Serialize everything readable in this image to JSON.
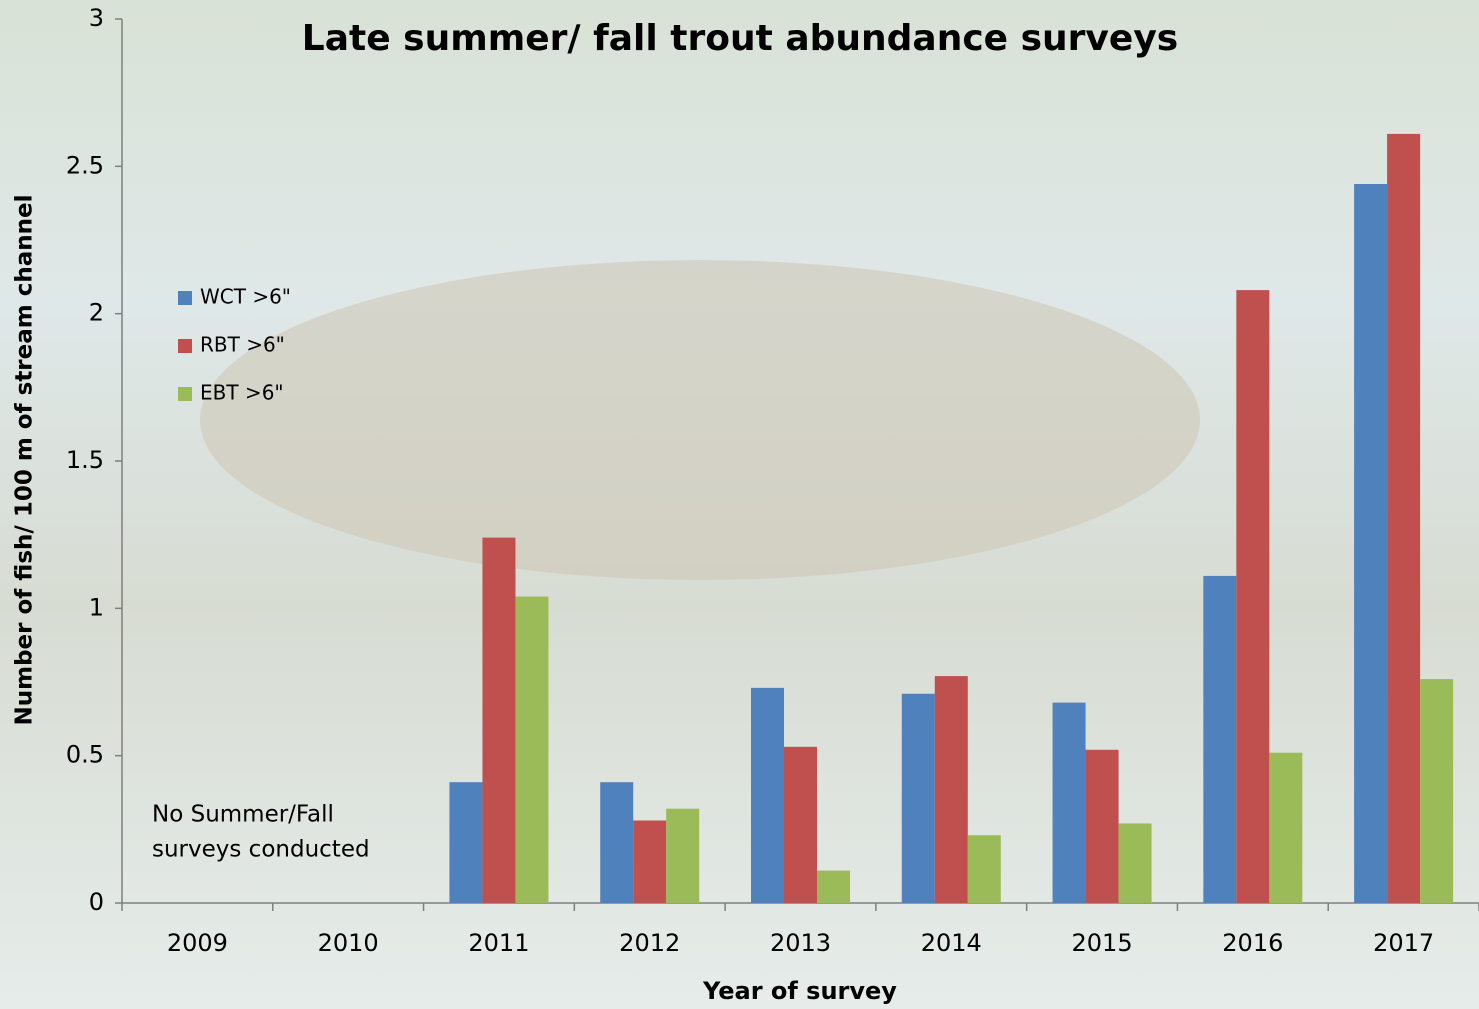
{
  "chart_data": {
    "type": "bar",
    "title": "Late summer/ fall trout abundance surveys",
    "x_label": "Year of survey",
    "y_label": "Number of fish/ 100 m of stream channel",
    "annotation": [
      "No Summer/Fall",
      "surveys conducted"
    ],
    "categories": [
      "2009",
      "2010",
      "2011",
      "2012",
      "2013",
      "2014",
      "2015",
      "2016",
      "2017"
    ],
    "series": [
      {
        "name": "WCT >6\"",
        "color": "#4f81bd",
        "values": [
          null,
          null,
          0.41,
          0.41,
          0.73,
          0.71,
          0.68,
          1.11,
          2.44
        ]
      },
      {
        "name": "RBT >6\"",
        "color": "#c0504d",
        "values": [
          null,
          null,
          1.24,
          0.28,
          0.53,
          0.77,
          0.52,
          2.08,
          2.61
        ]
      },
      {
        "name": "EBT >6\"",
        "color": "#9bbb59",
        "values": [
          null,
          null,
          1.04,
          0.32,
          0.11,
          0.23,
          0.27,
          0.51,
          0.76
        ]
      }
    ],
    "ylim": [
      0,
      3
    ],
    "yticks": [
      0,
      0.5,
      1,
      1.5,
      2,
      2.5,
      3
    ],
    "grid": false,
    "legend": "upper left"
  }
}
